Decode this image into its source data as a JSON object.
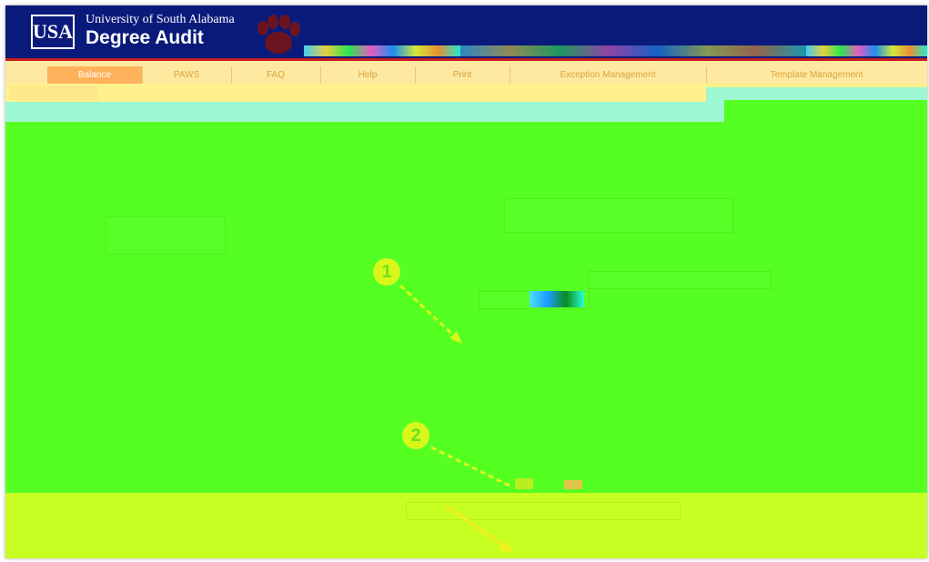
{
  "header": {
    "logo_text": "USA",
    "university": "University of South Alabama",
    "title": "Degree Audit"
  },
  "nav": {
    "tabs": [
      {
        "label": "Balance",
        "active": true
      },
      {
        "label": "PAWS",
        "active": false
      },
      {
        "label": "FAQ",
        "active": false
      },
      {
        "label": "Help",
        "active": false
      },
      {
        "label": "Print",
        "active": false
      },
      {
        "label": "Exception Management",
        "active": false
      },
      {
        "label": "Template Management",
        "active": false
      }
    ]
  },
  "callouts": [
    "1",
    "2"
  ],
  "colors": {
    "header_bg": "#0a1a7a",
    "accent_red": "#c32020",
    "nav_bg": "#ffe8a0",
    "highlight_green": "#55ff22",
    "highlight_yellow": "#c8ff22",
    "highlight_cyan": "#9cf7d2"
  }
}
